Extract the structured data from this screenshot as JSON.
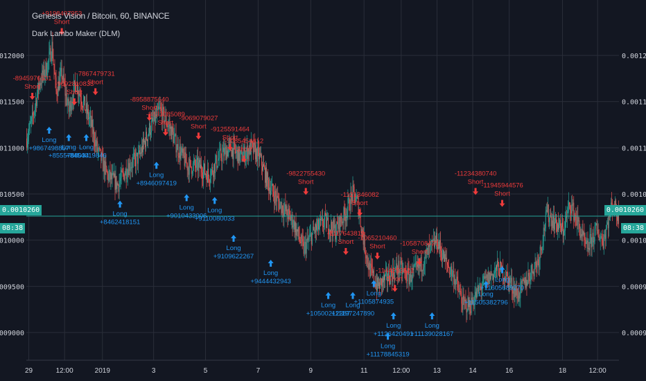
{
  "header": {
    "title": "Genesis Vision / Bitcoin, 60, BINANCE",
    "indicator": "Dark Lambo Maker (DLM)"
  },
  "price_badge": {
    "value": "0.0010260",
    "countdown": "08:38"
  },
  "colors": {
    "up": "#26a69a",
    "down": "#ef5350",
    "long": "#2196f3",
    "short": "#ef3b3b",
    "price_line": "#26a69a",
    "bg": "#131722",
    "grid": "#2a2e39",
    "text": "#d1d4dc"
  },
  "chart_data": {
    "type": "candlestick",
    "ylim": [
      0.00087,
      0.00126
    ],
    "y_ticks": [
      "0.0012000",
      "0.0011500",
      "0.0011000",
      "0.0010500",
      "0.0010000",
      "0.0009500",
      "0.0009000"
    ],
    "y_tick_values": [
      0.0012,
      0.00115,
      0.0011,
      0.00105,
      0.001,
      0.00095,
      0.0009
    ],
    "x_ticks": [
      "29",
      "12:00",
      "2019",
      "3",
      "5",
      "7",
      "9",
      "11",
      "12:00",
      "13",
      "14",
      "16",
      "18",
      "12:00"
    ],
    "x_tick_index": [
      3,
      54,
      108,
      181,
      255,
      330,
      405,
      481,
      534,
      585,
      636,
      688,
      764,
      814
    ],
    "n_candles": 845,
    "price_path": [
      [
        0,
        0.00111
      ],
      [
        8,
        0.00113
      ],
      [
        18,
        0.00117
      ],
      [
        30,
        0.00119
      ],
      [
        36,
        0.00121
      ],
      [
        42,
        0.00116
      ],
      [
        50,
        0.00118
      ],
      [
        60,
        0.00114
      ],
      [
        70,
        0.00117
      ],
      [
        80,
        0.00115
      ],
      [
        90,
        0.00113
      ],
      [
        100,
        0.0011
      ],
      [
        115,
        0.00107
      ],
      [
        130,
        0.00106
      ],
      [
        145,
        0.00108
      ],
      [
        160,
        0.00109
      ],
      [
        175,
        0.00112
      ],
      [
        190,
        0.00114
      ],
      [
        205,
        0.00112
      ],
      [
        215,
        0.0011
      ],
      [
        230,
        0.00108
      ],
      [
        245,
        0.00108
      ],
      [
        260,
        0.00107
      ],
      [
        275,
        0.00109
      ],
      [
        290,
        0.0011
      ],
      [
        305,
        0.00109
      ],
      [
        320,
        0.0011
      ],
      [
        332,
        0.00109
      ],
      [
        345,
        0.00106
      ],
      [
        360,
        0.00104
      ],
      [
        380,
        0.00102
      ],
      [
        395,
        0.00099
      ],
      [
        410,
        0.00101
      ],
      [
        425,
        0.00102
      ],
      [
        440,
        0.00101
      ],
      [
        455,
        0.00103
      ],
      [
        465,
        0.00105
      ],
      [
        472,
        0.00104
      ],
      [
        478,
        0.00101
      ],
      [
        488,
        0.00097
      ],
      [
        500,
        0.00095
      ],
      [
        515,
        0.00096
      ],
      [
        530,
        0.00097
      ],
      [
        545,
        0.00096
      ],
      [
        560,
        0.00097
      ],
      [
        575,
        0.00099
      ],
      [
        585,
        0.001
      ],
      [
        595,
        0.00098
      ],
      [
        610,
        0.00096
      ],
      [
        622,
        0.00093
      ],
      [
        633,
        0.00093
      ],
      [
        648,
        0.00095
      ],
      [
        660,
        0.00096
      ],
      [
        672,
        0.00097
      ],
      [
        685,
        0.00096
      ],
      [
        700,
        0.00094
      ],
      [
        715,
        0.00096
      ],
      [
        730,
        0.00098
      ],
      [
        742,
        0.00103
      ],
      [
        752,
        0.00102
      ],
      [
        765,
        0.00101
      ],
      [
        775,
        0.00104
      ],
      [
        785,
        0.00102
      ],
      [
        798,
        0.00099
      ],
      [
        812,
        0.00101
      ],
      [
        822,
        0.001
      ],
      [
        835,
        0.00104
      ],
      [
        844,
        0.001026
      ]
    ],
    "last_price": 0.001026,
    "signals": [
      {
        "type": "Short",
        "label": "+9198497953",
        "i": 50,
        "yv": 0.001243
      },
      {
        "type": "Short",
        "label": "-8945976531",
        "i": 8,
        "yv": 0.001173
      },
      {
        "type": "Short",
        "label": "-9092810833",
        "i": 68,
        "yv": 0.001167
      },
      {
        "type": "Short",
        "label": "-7867479731",
        "i": 98,
        "yv": 0.001178
      },
      {
        "type": "Long",
        "label": "+9867498857",
        "i": 32,
        "yv": 0.001116
      },
      {
        "type": "Long",
        "label": "+8555788034",
        "i": 60,
        "yv": 0.001108
      },
      {
        "type": "Long",
        "label": "+8454019846",
        "i": 85,
        "yv": 0.001108
      },
      {
        "type": "Short",
        "label": "-8958875640",
        "i": 175,
        "yv": 0.00115
      },
      {
        "type": "Short",
        "label": "-8833085089",
        "i": 198,
        "yv": 0.001134
      },
      {
        "type": "Long",
        "label": "+8946097419",
        "i": 185,
        "yv": 0.001078
      },
      {
        "type": "Short",
        "label": "-9069079027",
        "i": 245,
        "yv": 0.00113
      },
      {
        "type": "Short",
        "label": "-9125591464",
        "i": 290,
        "yv": 0.001118
      },
      {
        "type": "Short",
        "label": "-9085454412",
        "i": 310,
        "yv": 0.001105
      },
      {
        "type": "Long",
        "label": "+9010433006",
        "i": 228,
        "yv": 0.001043
      },
      {
        "type": "Long",
        "label": "+9110080033",
        "i": 268,
        "yv": 0.00104
      },
      {
        "type": "Long",
        "label": "+8462418151",
        "i": 133,
        "yv": 0.001036
      },
      {
        "type": "Short",
        "label": "-9822755430",
        "i": 398,
        "yv": 0.00107
      },
      {
        "type": "Long",
        "label": "+9109622267",
        "i": 295,
        "yv": 0.000999
      },
      {
        "type": "Long",
        "label": "+9444432943",
        "i": 348,
        "yv": 0.000972
      },
      {
        "type": "Short",
        "label": "-1121346082",
        "i": 475,
        "yv": 0.001047
      },
      {
        "type": "Short",
        "label": "-1117643819",
        "i": 455,
        "yv": 0.001005
      },
      {
        "type": "Short",
        "label": "-1065210460",
        "i": 500,
        "yv": 0.001
      },
      {
        "type": "Short",
        "label": "-1058708471",
        "i": 560,
        "yv": 0.000994
      },
      {
        "type": "Long",
        "label": "+1105874935",
        "i": 495,
        "yv": 0.00095
      },
      {
        "type": "Long",
        "label": "+10500212387",
        "i": 430,
        "yv": 0.000937
      },
      {
        "type": "Long",
        "label": "+11197247890",
        "i": 465,
        "yv": 0.000937
      },
      {
        "type": "Short",
        "label": "-1144253821",
        "i": 525,
        "yv": 0.000965
      },
      {
        "type": "Long",
        "label": "+1126420491",
        "i": 523,
        "yv": 0.000915
      },
      {
        "type": "Long",
        "label": "+11139028167",
        "i": 578,
        "yv": 0.000915
      },
      {
        "type": "Long",
        "label": "+11178845319",
        "i": 515,
        "yv": 0.000893
      },
      {
        "type": "Short",
        "label": "-11234380740",
        "i": 640,
        "yv": 0.00107
      },
      {
        "type": "Short",
        "label": "-11945944576",
        "i": 678,
        "yv": 0.001057
      },
      {
        "type": "Long",
        "label": "+11505382796",
        "i": 655,
        "yv": 0.000949
      },
      {
        "type": "Long",
        "label": "+11605689270",
        "i": 678,
        "yv": 0.000965
      }
    ]
  }
}
